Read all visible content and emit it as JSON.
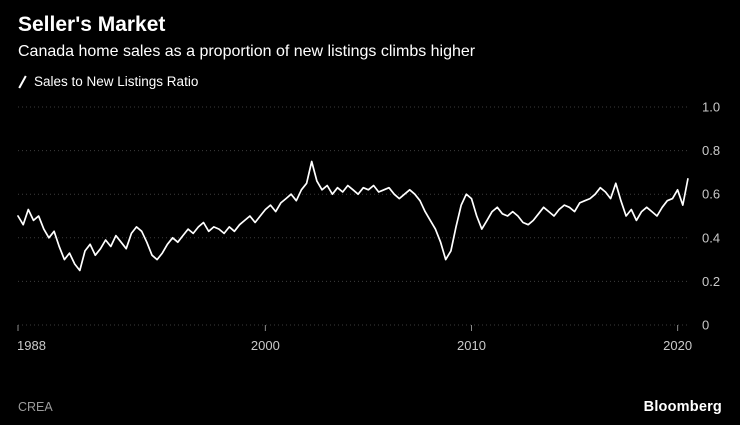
{
  "header": {
    "title": "Seller's Market",
    "subtitle": "Canada home sales as a proportion of new listings climbs higher"
  },
  "legend": {
    "label": "Sales to New Listings Ratio"
  },
  "footer": {
    "source": "CREA",
    "brand": "Bloomberg"
  },
  "colors": {
    "background": "#000000",
    "line": "#ffffff",
    "grid": "#3d3d3d",
    "tick_text": "#c9c9c9",
    "axis_tick": "#8a8a8a"
  },
  "chart_data": {
    "type": "line",
    "title": "Seller's Market",
    "subtitle": "Canada home sales as a proportion of new listings climbs higher",
    "series_name": "Sales to New Listings Ratio",
    "source": "CREA",
    "xlabel": "",
    "ylabel": "",
    "grid": "dotted-horizontal",
    "legend_position": "top-left",
    "y_axis_side": "right",
    "x_range": [
      1988,
      2020.6
    ],
    "y_range": [
      0,
      1.0
    ],
    "x_ticks": [
      1988,
      2000,
      2010,
      2020
    ],
    "y_ticks": [
      0,
      0.2,
      0.4,
      0.6,
      0.8,
      1.0
    ],
    "y_tick_labels": [
      "0",
      "0.2",
      "0.4",
      "0.6",
      "0.8",
      "1.0"
    ],
    "x": [
      1988,
      1988.25,
      1988.5,
      1988.75,
      1989,
      1989.25,
      1989.5,
      1989.75,
      1990,
      1990.25,
      1990.5,
      1990.75,
      1991,
      1991.25,
      1991.5,
      1991.75,
      1992,
      1992.25,
      1992.5,
      1992.75,
      1993,
      1993.25,
      1993.5,
      1993.75,
      1994,
      1994.25,
      1994.5,
      1994.75,
      1995,
      1995.25,
      1995.5,
      1995.75,
      1996,
      1996.25,
      1996.5,
      1996.75,
      1997,
      1997.25,
      1997.5,
      1997.75,
      1998,
      1998.25,
      1998.5,
      1998.75,
      1999,
      1999.25,
      1999.5,
      1999.75,
      2000,
      2000.25,
      2000.5,
      2000.75,
      2001,
      2001.25,
      2001.5,
      2001.75,
      2002,
      2002.25,
      2002.5,
      2002.75,
      2003,
      2003.25,
      2003.5,
      2003.75,
      2004,
      2004.25,
      2004.5,
      2004.75,
      2005,
      2005.25,
      2005.5,
      2005.75,
      2006,
      2006.25,
      2006.5,
      2006.75,
      2007,
      2007.25,
      2007.5,
      2007.75,
      2008,
      2008.25,
      2008.5,
      2008.75,
      2009,
      2009.25,
      2009.5,
      2009.75,
      2010,
      2010.25,
      2010.5,
      2010.75,
      2011,
      2011.25,
      2011.5,
      2011.75,
      2012,
      2012.25,
      2012.5,
      2012.75,
      2013,
      2013.25,
      2013.5,
      2013.75,
      2014,
      2014.25,
      2014.5,
      2014.75,
      2015,
      2015.25,
      2015.5,
      2015.75,
      2016,
      2016.25,
      2016.5,
      2016.75,
      2017,
      2017.25,
      2017.5,
      2017.75,
      2018,
      2018.25,
      2018.5,
      2018.75,
      2019,
      2019.25,
      2019.5,
      2019.75,
      2020,
      2020.25,
      2020.5
    ],
    "values": [
      0.5,
      0.46,
      0.53,
      0.48,
      0.5,
      0.44,
      0.4,
      0.43,
      0.36,
      0.3,
      0.33,
      0.28,
      0.25,
      0.34,
      0.37,
      0.32,
      0.35,
      0.39,
      0.36,
      0.41,
      0.38,
      0.35,
      0.42,
      0.45,
      0.43,
      0.38,
      0.32,
      0.3,
      0.33,
      0.37,
      0.4,
      0.38,
      0.41,
      0.44,
      0.42,
      0.45,
      0.47,
      0.43,
      0.45,
      0.44,
      0.42,
      0.45,
      0.43,
      0.46,
      0.48,
      0.5,
      0.47,
      0.5,
      0.53,
      0.55,
      0.52,
      0.56,
      0.58,
      0.6,
      0.57,
      0.62,
      0.65,
      0.75,
      0.66,
      0.62,
      0.64,
      0.6,
      0.63,
      0.61,
      0.64,
      0.62,
      0.6,
      0.63,
      0.62,
      0.64,
      0.61,
      0.62,
      0.63,
      0.6,
      0.58,
      0.6,
      0.62,
      0.6,
      0.57,
      0.52,
      0.48,
      0.44,
      0.38,
      0.3,
      0.34,
      0.45,
      0.55,
      0.6,
      0.58,
      0.5,
      0.44,
      0.48,
      0.52,
      0.54,
      0.51,
      0.5,
      0.52,
      0.5,
      0.47,
      0.46,
      0.48,
      0.51,
      0.54,
      0.52,
      0.5,
      0.53,
      0.55,
      0.54,
      0.52,
      0.56,
      0.57,
      0.58,
      0.6,
      0.63,
      0.61,
      0.58,
      0.65,
      0.57,
      0.5,
      0.53,
      0.48,
      0.52,
      0.54,
      0.52,
      0.5,
      0.54,
      0.57,
      0.58,
      0.62,
      0.55,
      0.67
    ]
  }
}
